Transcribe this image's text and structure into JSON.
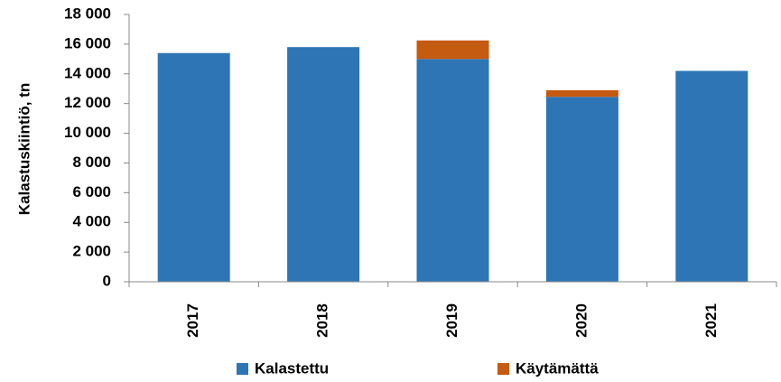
{
  "chart_data": {
    "type": "stacked_bar",
    "ylabel": "Kalastuskiintiö, tn",
    "categories": [
      "2017",
      "2018",
      "2019",
      "2020",
      "2021"
    ],
    "series": [
      {
        "name": "Kalastettu",
        "color": "#2e75b6",
        "values": [
          15400,
          15800,
          15000,
          12450,
          14200
        ]
      },
      {
        "name": "Käytämättä",
        "color": "#c55a11",
        "values": [
          0,
          0,
          1250,
          450,
          0
        ]
      }
    ],
    "ylim": [
      0,
      18000
    ],
    "yticks": [
      0,
      {
        "value": 2000,
        "label": "2 000"
      },
      {
        "value": 4000,
        "label": "4 000"
      },
      {
        "value": 6000,
        "label": "6 000"
      },
      {
        "value": 8000,
        "label": "8 000"
      },
      {
        "value": 10000,
        "label": "10 000"
      },
      {
        "value": 12000,
        "label": "12 000"
      },
      {
        "value": 14000,
        "label": "14 000"
      },
      {
        "value": 16000,
        "label": "16 000"
      },
      {
        "value": 18000,
        "label": "18 000"
      }
    ],
    "grid": false,
    "legend": "bottom"
  }
}
